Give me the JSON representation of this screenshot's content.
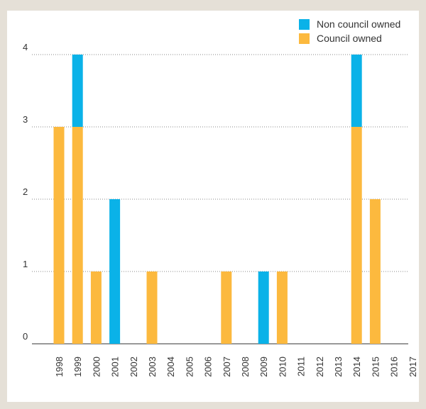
{
  "chart_data": {
    "type": "bar",
    "stacked": true,
    "categories": [
      "1998",
      "1999",
      "2000",
      "2001",
      "2002",
      "2003",
      "2004",
      "2005",
      "2006",
      "2007",
      "2008",
      "2009",
      "2010",
      "2011",
      "2012",
      "2013",
      "2014",
      "2015",
      "2016",
      "2017"
    ],
    "series": [
      {
        "name": "Council owned",
        "color": "#fcb93e",
        "values": [
          3,
          3,
          1,
          0,
          0,
          1,
          0,
          0,
          0,
          1,
          0,
          0,
          1,
          0,
          0,
          0,
          3,
          2,
          0,
          0
        ]
      },
      {
        "name": "Non council owned",
        "color": "#0ab2e8",
        "values": [
          0,
          1,
          0,
          2,
          0,
          0,
          0,
          0,
          0,
          0,
          0,
          1,
          0,
          0,
          0,
          0,
          1,
          0,
          0,
          0
        ]
      }
    ],
    "legend_order": [
      "Non council owned",
      "Council owned"
    ],
    "legend_position": "top-right",
    "y_ticks": [
      0,
      1,
      2,
      3,
      4
    ],
    "ylim": [
      0,
      4
    ],
    "grid": "horizontal-dotted",
    "title": "",
    "xlabel": "",
    "ylabel": ""
  }
}
